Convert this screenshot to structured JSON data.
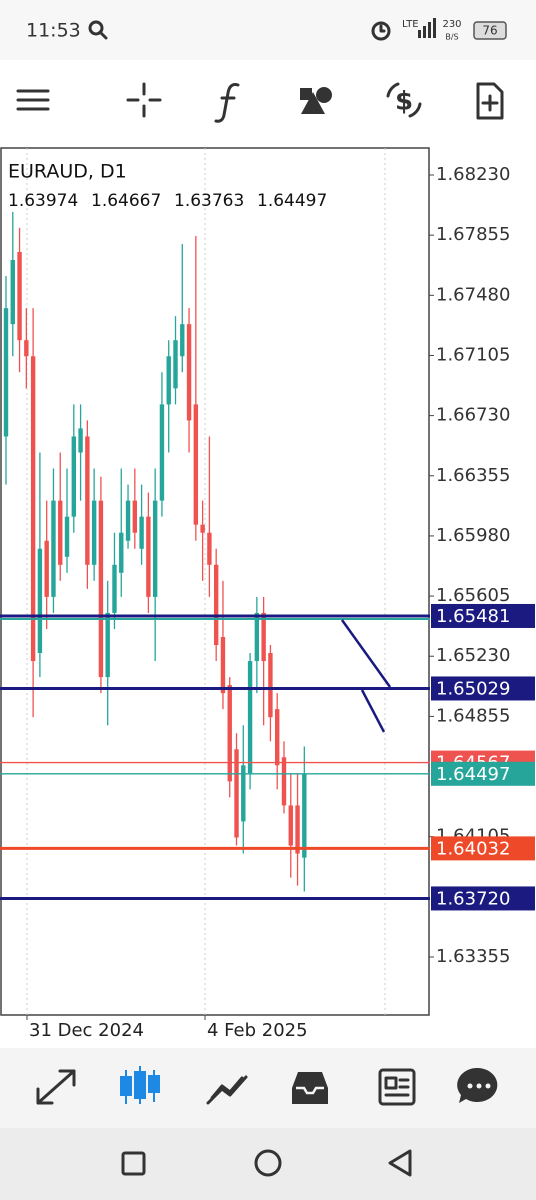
{
  "status_bar": {
    "time": "11:53",
    "network": "LTE",
    "speed": "230",
    "speed_unit": "B/S",
    "battery": "76"
  },
  "chart": {
    "symbol_title": "EURAUD, D1",
    "candles": [
      {
        "o": 1.666,
        "h": 1.676,
        "l": 1.663,
        "c": 1.674
      },
      {
        "o": 1.673,
        "h": 1.68,
        "l": 1.671,
        "c": 1.677
      },
      {
        "o": 1.6775,
        "h": 1.679,
        "l": 1.67,
        "c": 1.672
      },
      {
        "o": 1.672,
        "h": 1.674,
        "l": 1.669,
        "c": 1.671
      },
      {
        "o": 1.671,
        "h": 1.674,
        "l": 1.6485,
        "c": 1.652
      },
      {
        "o": 1.6525,
        "h": 1.665,
        "l": 1.651,
        "c": 1.659
      },
      {
        "o": 1.6595,
        "h": 1.662,
        "l": 1.654,
        "c": 1.656
      },
      {
        "o": 1.656,
        "h": 1.664,
        "l": 1.655,
        "c": 1.662
      },
      {
        "o": 1.662,
        "h": 1.665,
        "l": 1.657,
        "c": 1.658
      },
      {
        "o": 1.6585,
        "h": 1.664,
        "l": 1.6575,
        "c": 1.661
      },
      {
        "o": 1.661,
        "h": 1.668,
        "l": 1.66,
        "c": 1.666
      },
      {
        "o": 1.665,
        "h": 1.668,
        "l": 1.662,
        "c": 1.6665
      },
      {
        "o": 1.666,
        "h": 1.667,
        "l": 1.6565,
        "c": 1.658
      },
      {
        "o": 1.658,
        "h": 1.664,
        "l": 1.657,
        "c": 1.662
      },
      {
        "o": 1.662,
        "h": 1.6635,
        "l": 1.65,
        "c": 1.651
      },
      {
        "o": 1.651,
        "h": 1.657,
        "l": 1.648,
        "c": 1.655
      },
      {
        "o": 1.655,
        "h": 1.66,
        "l": 1.654,
        "c": 1.658
      },
      {
        "o": 1.6575,
        "h": 1.664,
        "l": 1.656,
        "c": 1.66
      },
      {
        "o": 1.6595,
        "h": 1.663,
        "l": 1.659,
        "c": 1.662
      },
      {
        "o": 1.662,
        "h": 1.664,
        "l": 1.659,
        "c": 1.66
      },
      {
        "o": 1.659,
        "h": 1.663,
        "l": 1.658,
        "c": 1.661
      },
      {
        "o": 1.661,
        "h": 1.6625,
        "l": 1.655,
        "c": 1.656
      },
      {
        "o": 1.656,
        "h": 1.664,
        "l": 1.652,
        "c": 1.662
      },
      {
        "o": 1.662,
        "h": 1.67,
        "l": 1.661,
        "c": 1.668
      },
      {
        "o": 1.668,
        "h": 1.672,
        "l": 1.665,
        "c": 1.671
      },
      {
        "o": 1.669,
        "h": 1.6735,
        "l": 1.668,
        "c": 1.672
      },
      {
        "o": 1.671,
        "h": 1.678,
        "l": 1.67,
        "c": 1.673
      },
      {
        "o": 1.673,
        "h": 1.674,
        "l": 1.665,
        "c": 1.667
      },
      {
        "o": 1.668,
        "h": 1.6785,
        "l": 1.6595,
        "c": 1.6605
      },
      {
        "o": 1.6605,
        "h": 1.662,
        "l": 1.657,
        "c": 1.66
      },
      {
        "o": 1.66,
        "h": 1.666,
        "l": 1.656,
        "c": 1.658
      },
      {
        "o": 1.658,
        "h": 1.659,
        "l": 1.652,
        "c": 1.653
      },
      {
        "o": 1.6535,
        "h": 1.657,
        "l": 1.649,
        "c": 1.65
      },
      {
        "o": 1.6505,
        "h": 1.651,
        "l": 1.6435,
        "c": 1.6445
      },
      {
        "o": 1.6465,
        "h": 1.6475,
        "l": 1.6405,
        "c": 1.641
      },
      {
        "o": 1.642,
        "h": 1.648,
        "l": 1.64,
        "c": 1.6455
      },
      {
        "o": 1.645,
        "h": 1.6525,
        "l": 1.644,
        "c": 1.652
      },
      {
        "o": 1.652,
        "h": 1.656,
        "l": 1.65,
        "c": 1.655
      },
      {
        "o": 1.655,
        "h": 1.656,
        "l": 1.648,
        "c": 1.652
      },
      {
        "o": 1.6525,
        "h": 1.653,
        "l": 1.647,
        "c": 1.6485
      },
      {
        "o": 1.649,
        "h": 1.65,
        "l": 1.644,
        "c": 1.6455
      },
      {
        "o": 1.646,
        "h": 1.647,
        "l": 1.6425,
        "c": 1.643
      },
      {
        "o": 1.643,
        "h": 1.645,
        "l": 1.6385,
        "c": 1.6405
      },
      {
        "o": 1.643,
        "h": 1.645,
        "l": 1.638,
        "c": 1.64
      },
      {
        "o": 1.63974,
        "h": 1.64667,
        "l": 1.63763,
        "c": 1.64497
      }
    ],
    "up_color": "#26a69a",
    "down_color": "#ef5350",
    "price_ticks": [
      {
        "value": 1.6823,
        "label": "1.68230"
      },
      {
        "value": 1.67855,
        "label": "1.67855"
      },
      {
        "value": 1.6748,
        "label": "1.67480"
      },
      {
        "value": 1.67105,
        "label": "1.67105"
      },
      {
        "value": 1.6673,
        "label": "1.66730"
      },
      {
        "value": 1.66355,
        "label": "1.66355"
      },
      {
        "value": 1.6598,
        "label": "1.65980"
      },
      {
        "value": 1.65605,
        "label": "1.65605"
      },
      {
        "value": 1.6523,
        "label": "1.65230"
      },
      {
        "value": 1.64855,
        "label": "1.64855"
      },
      {
        "value": 1.64105,
        "label": "1.64105"
      },
      {
        "value": 1.63355,
        "label": "1.63355"
      }
    ],
    "price_lines": [
      {
        "value": 1.64567,
        "label": "1.64567",
        "color": "#ef5350"
      },
      {
        "value": 1.65481,
        "label": "1.65481",
        "color": "#1a1a80"
      },
      {
        "value": 1.65029,
        "label": "1.65029",
        "color": "#1a1a80"
      },
      {
        "value": 1.64497,
        "label": "1.64497",
        "color": "#26a69a"
      },
      {
        "value": 1.64032,
        "label": "1.64032",
        "color": "#ee4a2a"
      },
      {
        "value": 1.6372,
        "label": "1.63720",
        "color": "#1a1a80"
      }
    ],
    "date_labels": [
      "31 Dec 2024",
      "4 Feb 2025"
    ]
  }
}
